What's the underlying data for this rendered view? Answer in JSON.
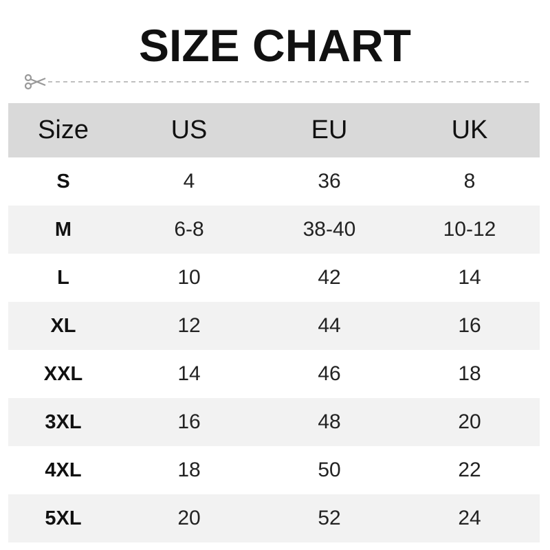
{
  "title": "SIZE CHART",
  "icons": {
    "cut_line": "scissors-icon"
  },
  "colors": {
    "header_bg": "#d9d9d9",
    "alt_row_bg": "#f2f2f2",
    "cut_line": "#aaaaaa"
  },
  "table": {
    "headers": [
      "Size",
      "US",
      "EU",
      "UK"
    ],
    "rows": [
      [
        "S",
        "4",
        "36",
        "8"
      ],
      [
        "M",
        "6-8",
        "38-40",
        "10-12"
      ],
      [
        "L",
        "10",
        "42",
        "14"
      ],
      [
        "XL",
        "12",
        "44",
        "16"
      ],
      [
        "XXL",
        "14",
        "46",
        "18"
      ],
      [
        "3XL",
        "16",
        "48",
        "20"
      ],
      [
        "4XL",
        "18",
        "50",
        "22"
      ],
      [
        "5XL",
        "20",
        "52",
        "24"
      ]
    ]
  }
}
